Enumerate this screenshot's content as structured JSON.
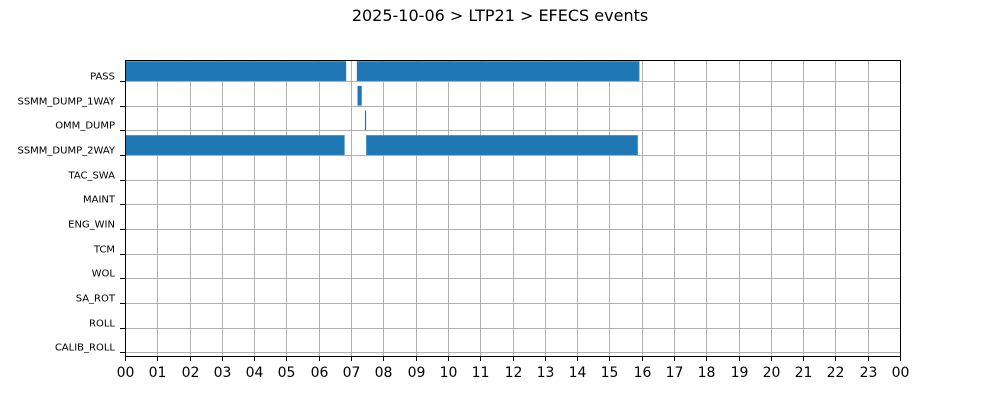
{
  "chart_data": {
    "type": "gantt",
    "title": "2025-10-06 > LTP21 > EFECS events",
    "x_unit": "hour",
    "xlim": [
      0,
      24
    ],
    "x_tick_labels": [
      "00",
      "01",
      "02",
      "03",
      "04",
      "05",
      "06",
      "07",
      "08",
      "09",
      "10",
      "11",
      "12",
      "13",
      "14",
      "15",
      "16",
      "17",
      "18",
      "19",
      "20",
      "21",
      "22",
      "23",
      "00"
    ],
    "grid": true,
    "bar_color": "#1f77b4",
    "categories": [
      "PASS",
      "SSMM_DUMP_1WAY",
      "OMM_DUMP",
      "SSMM_DUMP_2WAY",
      "TAC_SWA",
      "MAINT",
      "ENG_WIN",
      "TCM",
      "WOL",
      "SA_ROT",
      "ROLL",
      "CALIB_ROLL"
    ],
    "events": [
      {
        "category": "PASS",
        "start": 0.0,
        "end": 6.85
      },
      {
        "category": "PASS",
        "start": 7.18,
        "end": 15.93
      },
      {
        "category": "SSMM_DUMP_1WAY",
        "start": 7.2,
        "end": 7.33
      },
      {
        "category": "OMM_DUMP",
        "start": 7.43,
        "end": 7.46
      },
      {
        "category": "SSMM_DUMP_2WAY",
        "start": 0.0,
        "end": 6.8
      },
      {
        "category": "SSMM_DUMP_2WAY",
        "start": 7.47,
        "end": 15.88
      }
    ]
  }
}
